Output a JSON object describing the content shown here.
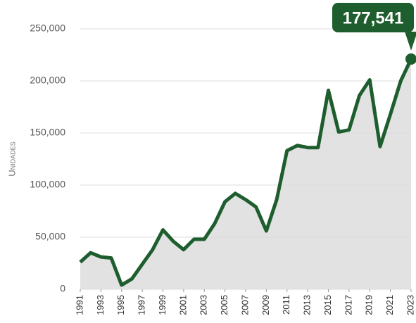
{
  "chart_data": {
    "type": "line",
    "y_label": "Unidades",
    "annotation": "177,541",
    "x": [
      1991,
      1992,
      1993,
      1994,
      1995,
      1996,
      1997,
      1998,
      1999,
      2000,
      2001,
      2002,
      2003,
      2004,
      2005,
      2006,
      2007,
      2008,
      2009,
      2010,
      2011,
      2012,
      2013,
      2014,
      2015,
      2016,
      2017,
      2018,
      2019,
      2020,
      2021,
      2022,
      2023
    ],
    "values": [
      26000,
      35000,
      31000,
      30000,
      4000,
      10000,
      24000,
      38000,
      57000,
      46000,
      38000,
      48000,
      48000,
      63000,
      84000,
      92000,
      86000,
      79000,
      56000,
      86000,
      133000,
      138000,
      136000,
      136000,
      191000,
      151000,
      153000,
      186000,
      201000,
      137000,
      168000,
      200000,
      221000
    ],
    "color": "#1e5e2e",
    "area_color": "#e2e2e2",
    "xlim": [
      1991,
      2023
    ],
    "xticks": [
      1991,
      1993,
      1995,
      1997,
      1999,
      2001,
      2003,
      2005,
      2007,
      2009,
      2011,
      2013,
      2015,
      2017,
      2019,
      2021,
      2023
    ],
    "ylim": [
      0,
      250000
    ],
    "yticks": [
      0,
      {
        "value": 50000,
        "label": "50,000"
      },
      {
        "value": 100000,
        "label": "100,000"
      },
      {
        "value": 150000,
        "label": "150,000"
      },
      {
        "value": 200000,
        "label": "200,000"
      },
      {
        "value": 250000,
        "label": "250,000"
      }
    ],
    "grid": true
  }
}
